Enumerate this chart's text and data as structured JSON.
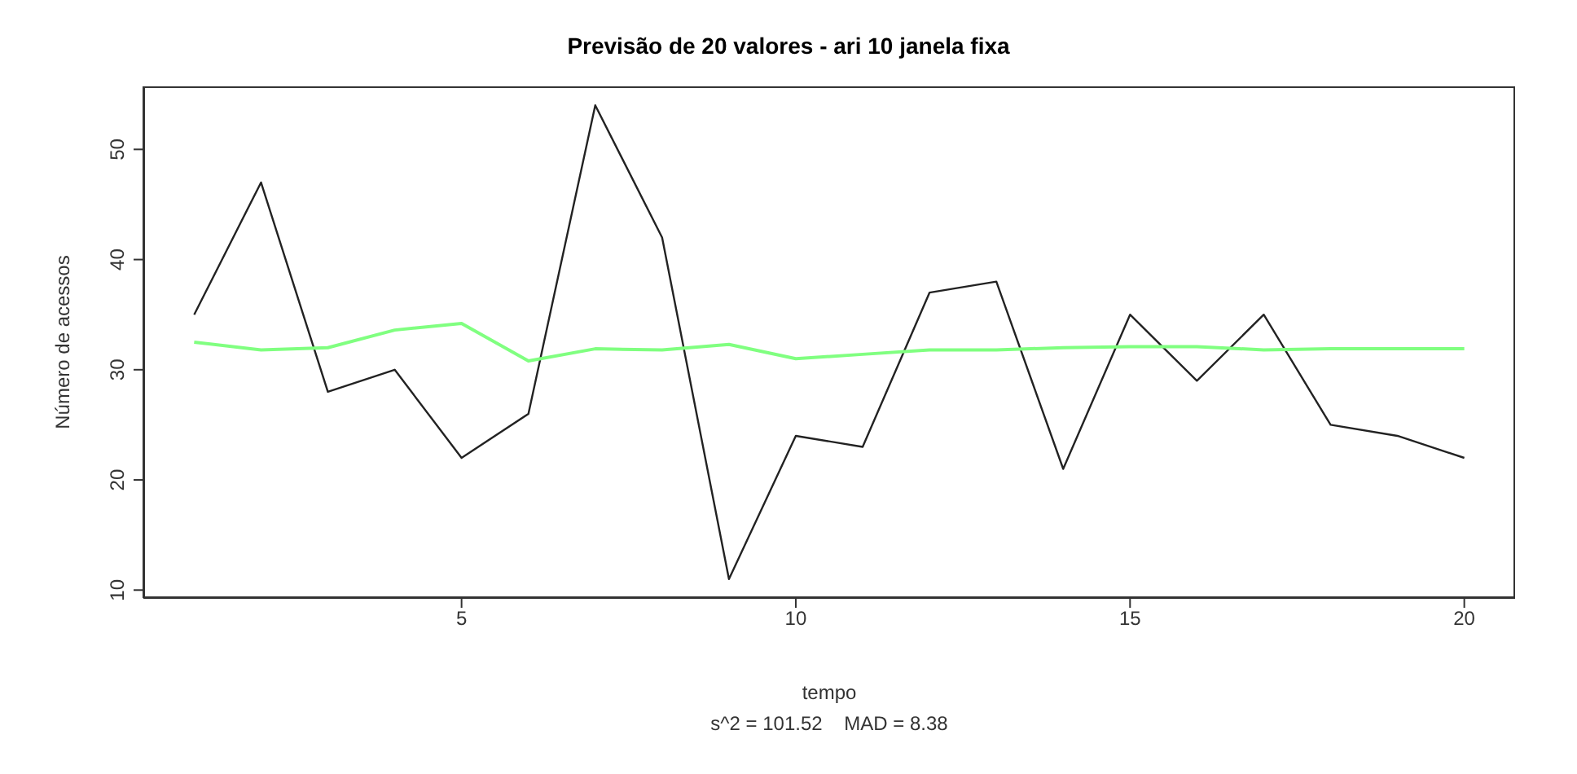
{
  "chart_data": {
    "type": "line",
    "title": "Previsão de 20 valores - ari 10 janela fixa",
    "xlabel": "tempo",
    "ylabel": "Número de acessos",
    "annotations": [
      "s^2 = 101.52    MAD = 8.38"
    ],
    "x": [
      1,
      2,
      3,
      4,
      5,
      6,
      7,
      8,
      9,
      10,
      11,
      12,
      13,
      14,
      15,
      16,
      17,
      18,
      19,
      20
    ],
    "xlim": [
      0.24,
      20.76
    ],
    "xticks": [
      5,
      10,
      15,
      20
    ],
    "ylim": [
      9.28,
      55.72
    ],
    "yticks": [
      10,
      20,
      30,
      40,
      50
    ],
    "series": [
      {
        "color": "#222222",
        "values": [
          35,
          47,
          28,
          30,
          22,
          26,
          54,
          42,
          11,
          24,
          23,
          37,
          38,
          21,
          35,
          29,
          35,
          25,
          24,
          22
        ]
      },
      {
        "color": "#80ff80",
        "values": [
          32.5,
          31.8,
          32,
          33.6,
          34.2,
          30.8,
          31.9,
          31.8,
          32.3,
          31,
          31.4,
          31.8,
          31.8,
          32,
          32.1,
          32.1,
          31.8,
          31.9,
          31.9,
          31.9
        ]
      }
    ]
  }
}
